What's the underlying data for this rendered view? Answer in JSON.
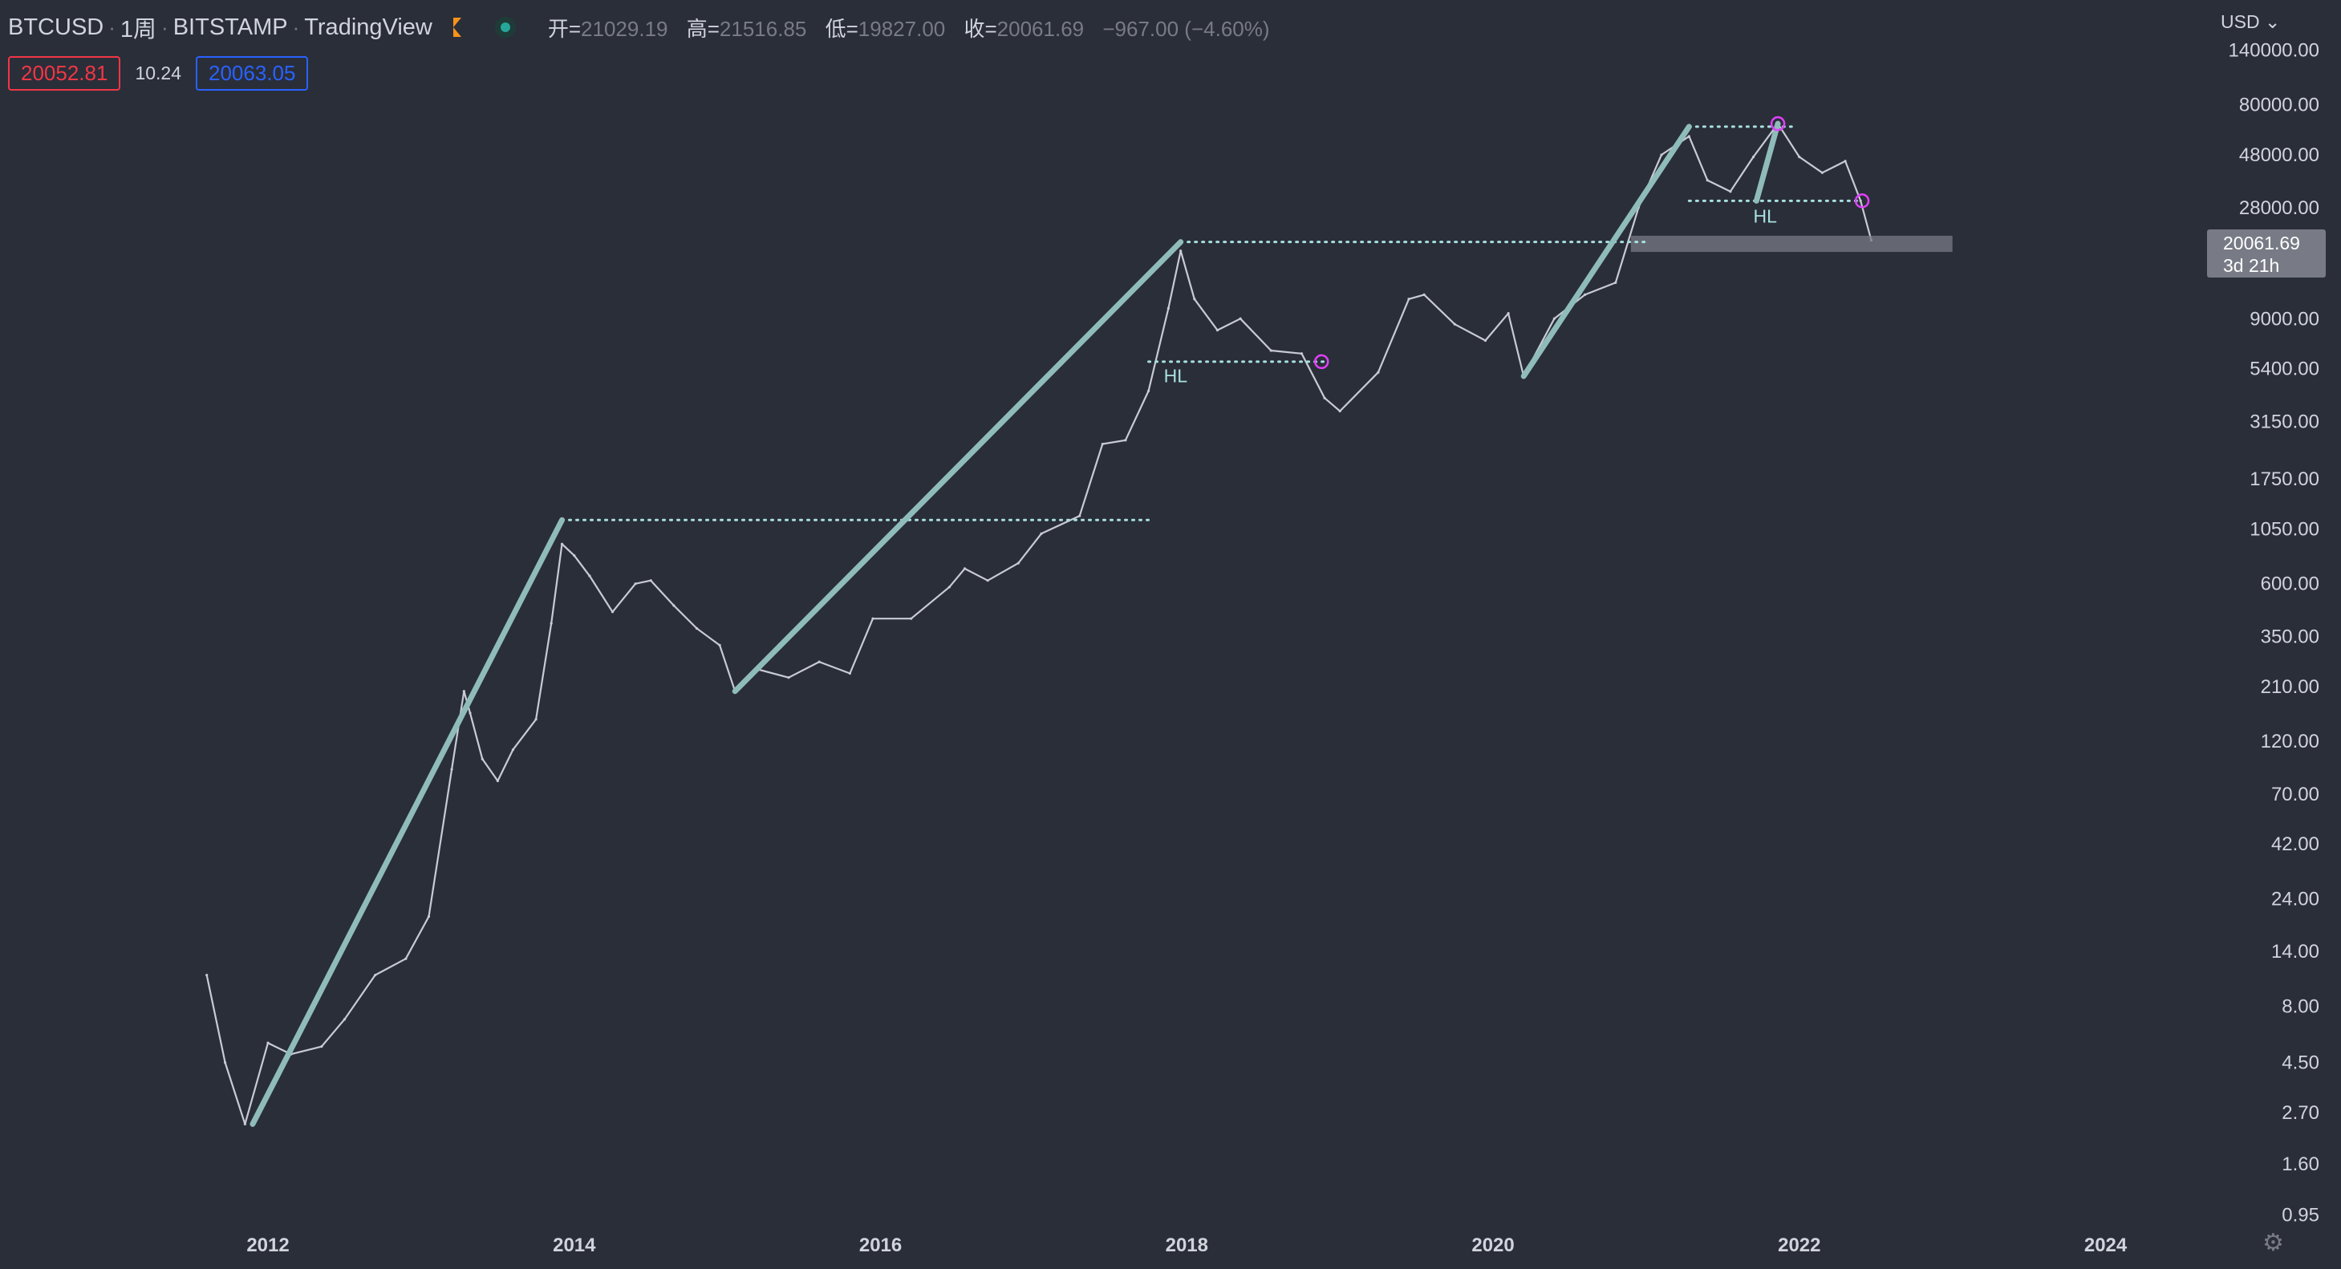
{
  "header": {
    "symbol": "BTCUSD",
    "interval": "1周",
    "exchange": "BITSTAMP",
    "source": "TradingView",
    "open_label": "开=",
    "open": "21029.19",
    "high_label": "高=",
    "high": "21516.85",
    "low_label": "低=",
    "low": "19827.00",
    "close_label": "收=",
    "close": "20061.69",
    "change": "−967.00 (−4.60%)"
  },
  "trade": {
    "sell_price": "20052.81",
    "spread": "10.24",
    "buy_price": "20063.05"
  },
  "currency": "USD",
  "last_price": {
    "value": "20061.69",
    "countdown": "3d 21h"
  },
  "colors": {
    "background": "#2a2e39",
    "text": "#d1d4dc",
    "muted": "#787b86",
    "trendline": "#8fbcbb",
    "dotted": "#a8e0e0",
    "candles": "#c8cbd3",
    "sell": "#f23645",
    "buy": "#2962ff",
    "marker": "#e040fb"
  },
  "icons": {
    "settings": "gear-icon",
    "flag": "flag-icon",
    "market_status": "market-open-icon"
  },
  "chart_data": {
    "type": "line",
    "scale": "log",
    "x_ticks": [
      "2012",
      "2014",
      "2016",
      "2018",
      "2020",
      "2022",
      "2024"
    ],
    "y_ticks": [
      "140000.00",
      "80000.00",
      "48000.00",
      "28000.00",
      "9000.00",
      "5400.00",
      "3150.00",
      "1750.00",
      "1050.00",
      "600.00",
      "350.00",
      "210.00",
      "120.00",
      "70.00",
      "42.00",
      "24.00",
      "14.00",
      "8.00",
      "4.50",
      "2.70",
      "1.60",
      "0.95"
    ],
    "xlim": [
      2010.25,
      2024.5
    ],
    "series": [
      {
        "values": [
          [
            2011.6,
            11
          ],
          [
            2011.72,
            4.5
          ],
          [
            2011.85,
            2.4
          ],
          [
            2012.0,
            5.5
          ],
          [
            2012.15,
            4.9
          ],
          [
            2012.35,
            5.3
          ],
          [
            2012.5,
            7
          ],
          [
            2012.7,
            11
          ],
          [
            2012.9,
            13
          ],
          [
            2013.05,
            20
          ],
          [
            2013.2,
            90
          ],
          [
            2013.28,
            200
          ],
          [
            2013.32,
            160
          ],
          [
            2013.4,
            100
          ],
          [
            2013.5,
            80
          ],
          [
            2013.6,
            110
          ],
          [
            2013.75,
            150
          ],
          [
            2013.85,
            400
          ],
          [
            2013.92,
            900
          ],
          [
            2014.0,
            800
          ],
          [
            2014.1,
            650
          ],
          [
            2014.25,
            450
          ],
          [
            2014.4,
            600
          ],
          [
            2014.5,
            620
          ],
          [
            2014.65,
            480
          ],
          [
            2014.8,
            380
          ],
          [
            2014.95,
            320
          ],
          [
            2015.05,
            200
          ],
          [
            2015.2,
            250
          ],
          [
            2015.4,
            230
          ],
          [
            2015.6,
            270
          ],
          [
            2015.8,
            240
          ],
          [
            2015.95,
            420
          ],
          [
            2016.2,
            420
          ],
          [
            2016.45,
            580
          ],
          [
            2016.55,
            700
          ],
          [
            2016.7,
            620
          ],
          [
            2016.9,
            740
          ],
          [
            2017.05,
            1000
          ],
          [
            2017.3,
            1200
          ],
          [
            2017.45,
            2500
          ],
          [
            2017.6,
            2600
          ],
          [
            2017.75,
            4300
          ],
          [
            2017.88,
            10000
          ],
          [
            2017.96,
            18000
          ],
          [
            2018.05,
            11000
          ],
          [
            2018.2,
            8000
          ],
          [
            2018.35,
            9000
          ],
          [
            2018.55,
            6500
          ],
          [
            2018.75,
            6300
          ],
          [
            2018.9,
            4000
          ],
          [
            2019.0,
            3500
          ],
          [
            2019.25,
            5200
          ],
          [
            2019.45,
            11000
          ],
          [
            2019.55,
            11500
          ],
          [
            2019.75,
            8500
          ],
          [
            2019.95,
            7200
          ],
          [
            2020.1,
            9500
          ],
          [
            2020.2,
            5000
          ],
          [
            2020.4,
            9000
          ],
          [
            2020.6,
            11500
          ],
          [
            2020.8,
            13000
          ],
          [
            2020.95,
            28000
          ],
          [
            2021.1,
            48000
          ],
          [
            2021.28,
            58000
          ],
          [
            2021.4,
            37000
          ],
          [
            2021.55,
            33000
          ],
          [
            2021.7,
            47000
          ],
          [
            2021.86,
            66000
          ],
          [
            2022.0,
            47000
          ],
          [
            2022.15,
            40000
          ],
          [
            2022.3,
            45000
          ],
          [
            2022.4,
            30000
          ],
          [
            2022.47,
            20061.69
          ]
        ]
      }
    ],
    "trendlines": [
      [
        [
          2011.9,
          2.4
        ],
        [
          2013.92,
          1150
        ]
      ],
      [
        [
          2015.05,
          200
        ],
        [
          2017.96,
          19700
        ]
      ],
      [
        [
          2020.2,
          5000
        ],
        [
          2021.28,
          64000
        ]
      ],
      [
        [
          2021.72,
          30000
        ],
        [
          2021.86,
          66000
        ]
      ]
    ],
    "horizontal_levels": [
      {
        "y": 1150,
        "x": [
          2013.92,
          2017.75
        ]
      },
      {
        "y": 19700,
        "x": [
          2017.96,
          2021.0
        ]
      },
      {
        "y": 5800,
        "x": [
          2017.75,
          2018.9
        ]
      },
      {
        "y": 64000,
        "x": [
          2021.28,
          2021.95
        ]
      },
      {
        "y": 30000,
        "x": [
          2021.28,
          2022.4
        ]
      }
    ],
    "zone": {
      "y": [
        17800,
        21000
      ],
      "x": [
        2020.9,
        2023.0
      ]
    },
    "annotations": [
      {
        "text": "HL",
        "x": 2017.85,
        "y": 4700
      },
      {
        "text": "HL",
        "x": 2021.7,
        "y": 24000
      }
    ],
    "markers": [
      {
        "x": 2018.88,
        "y": 5800
      },
      {
        "x": 2021.86,
        "y": 66000
      },
      {
        "x": 2022.41,
        "y": 30000
      }
    ]
  }
}
